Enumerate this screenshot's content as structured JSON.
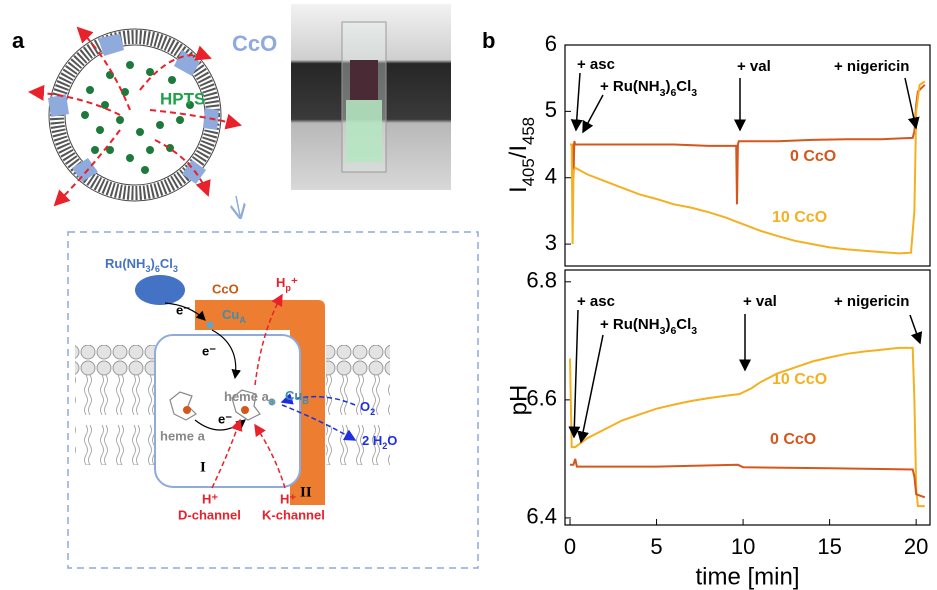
{
  "panel_labels": [
    "a",
    "b"
  ],
  "panel_a": {
    "vesicle": {
      "protein": "CcO",
      "dye": "HPTS"
    },
    "diagram": {
      "reductant": [
        "Ru(NH",
        "3",
        ")",
        "6",
        "Cl",
        "3"
      ],
      "protein": "CcO",
      "cu_a": [
        "Cu",
        "A"
      ],
      "proton_pumped": [
        "H",
        "p",
        "⁺"
      ],
      "electrons": [
        "e⁻",
        "e⁻",
        "e⁻"
      ],
      "heme_a3": [
        "heme a",
        "3"
      ],
      "cu_b": [
        "Cu",
        "B"
      ],
      "oxygen": [
        "O",
        "2"
      ],
      "water": [
        "2 H",
        "2",
        "O"
      ],
      "heme_a": "heme a",
      "subunit_1": "I",
      "subunit_2": "II",
      "d_proton": "H⁺",
      "d_channel": "D-channel",
      "k_proton": "H⁺",
      "k_channel": "K-channel"
    }
  },
  "chart_data": [
    {
      "type": "line",
      "y_label": [
        "I",
        "405",
        "/I",
        "458"
      ],
      "xlim": [
        -0.29,
        20.8
      ],
      "ylim": [
        2.67,
        6
      ],
      "yticks": [
        3,
        4,
        5,
        6
      ],
      "annotations": [
        "+ asc",
        [
          "+ Ru(NH",
          "3",
          ")",
          "6",
          "Cl",
          "3"
        ],
        "+ val",
        "+ nigericin"
      ],
      "series": [
        {
          "name": "0 CcO",
          "color": "#d4571c",
          "x": [
            0,
            0.15,
            0.2,
            0.25,
            0.3,
            0.5,
            2,
            4,
            6,
            8,
            9.6,
            9.65,
            9.7,
            9.75,
            10,
            12,
            14,
            16,
            18,
            19.8,
            19.9,
            20.0,
            20.1,
            20.5
          ],
          "values": [
            4.5,
            4.5,
            4.0,
            4.55,
            4.5,
            4.5,
            4.5,
            4.5,
            4.5,
            4.48,
            4.48,
            3.6,
            4.5,
            4.55,
            4.55,
            4.55,
            4.57,
            4.58,
            4.58,
            4.6,
            4.7,
            5.1,
            5.3,
            5.4
          ]
        },
        {
          "name": "10 CcO",
          "color": "#f5b021",
          "x": [
            0,
            0.1,
            0.15,
            0.2,
            0.3,
            1,
            2,
            3,
            4,
            5,
            6,
            7,
            8,
            9,
            9.5,
            10,
            11,
            12,
            13,
            14,
            15,
            16,
            17,
            18,
            19,
            19.7,
            19.9,
            20.0,
            20.2,
            20.5
          ],
          "values": [
            4.5,
            4.5,
            3.0,
            4.1,
            4.15,
            4.05,
            3.95,
            3.85,
            3.75,
            3.68,
            3.6,
            3.55,
            3.48,
            3.4,
            3.35,
            3.3,
            3.2,
            3.12,
            3.05,
            3.0,
            2.95,
            2.92,
            2.9,
            2.88,
            2.86,
            2.87,
            3.5,
            5.0,
            5.4,
            5.45
          ]
        }
      ]
    },
    {
      "type": "line",
      "x_label": "time [min]",
      "y_label": "pH",
      "xlim": [
        -0.29,
        20.8
      ],
      "xticks": [
        0,
        5,
        10,
        15,
        20
      ],
      "ylim": [
        6.388,
        6.82
      ],
      "yticks": [
        6.4,
        6.6,
        6.8
      ],
      "annotations": [
        "+ asc",
        [
          "+ Ru(NH",
          "3",
          ")",
          "6",
          "Cl",
          "3"
        ],
        "+ val",
        "+ nigericin"
      ],
      "series": [
        {
          "name": "10 CcO",
          "color": "#f5b021",
          "x": [
            0,
            0.1,
            0.2,
            0.3,
            1,
            2,
            3,
            4,
            5,
            6,
            7,
            8,
            9,
            9.8,
            10.5,
            11,
            12,
            13,
            14,
            15,
            16,
            17,
            18,
            19,
            19.8,
            19.9,
            20.0,
            20.1,
            20.5
          ],
          "values": [
            6.67,
            6.52,
            6.52,
            6.52,
            6.535,
            6.55,
            6.565,
            6.575,
            6.585,
            6.592,
            6.598,
            6.603,
            6.607,
            6.61,
            6.62,
            6.63,
            6.645,
            6.655,
            6.665,
            6.672,
            6.678,
            6.682,
            6.685,
            6.688,
            6.688,
            6.6,
            6.45,
            6.42,
            6.42
          ]
        },
        {
          "name": "0 CcO",
          "color": "#d4571c",
          "x": [
            0,
            0.2,
            0.3,
            0.4,
            1,
            5,
            9.7,
            10,
            15,
            19.8,
            19.9,
            20.0,
            20.5
          ],
          "values": [
            6.49,
            6.49,
            6.5,
            6.487,
            6.487,
            6.487,
            6.49,
            6.486,
            6.484,
            6.482,
            6.47,
            6.44,
            6.435
          ]
        }
      ]
    }
  ]
}
